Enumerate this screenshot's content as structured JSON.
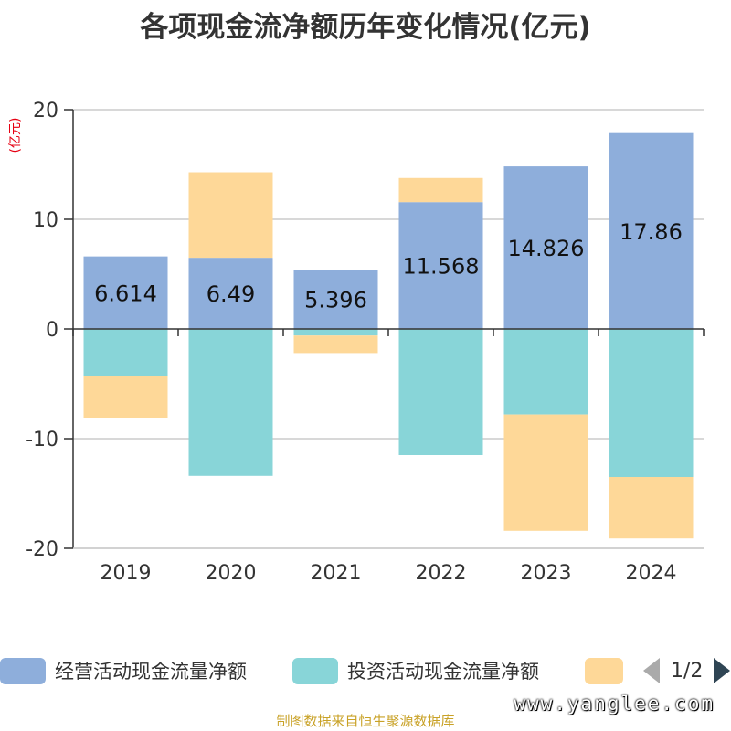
{
  "chart_data": {
    "type": "bar",
    "stacked": true,
    "title": "各项现金流净额历年变化情况(亿元)",
    "ylabel": "(亿元)",
    "categories": [
      "2019",
      "2020",
      "2021",
      "2022",
      "2023",
      "2024"
    ],
    "ylim": [
      -20,
      20
    ],
    "yticks": [
      20,
      10,
      0,
      -10,
      -20
    ],
    "grid": true,
    "legend_position": "bottom",
    "series": [
      {
        "name": "经营活动现金流量净额",
        "color": "#8eaedb",
        "values": [
          6.614,
          6.49,
          5.396,
          11.568,
          14.826,
          17.86
        ],
        "labels": [
          "6.614",
          "6.49",
          "5.396",
          "11.568",
          "14.826",
          "17.86"
        ]
      },
      {
        "name": "投资活动现金流量净额",
        "color": "#88d5d8",
        "values": [
          -4.3,
          -13.4,
          -0.6,
          -11.5,
          -7.8,
          -13.5
        ]
      },
      {
        "name": "",
        "color": "#fed898",
        "values": [
          -3.8,
          7.8,
          -1.6,
          2.2,
          -10.6,
          -5.6
        ]
      }
    ]
  },
  "pager": {
    "text": "1/2"
  },
  "watermark": "www.yanglee.com",
  "source": "制图数据来自恒生聚源数据库"
}
